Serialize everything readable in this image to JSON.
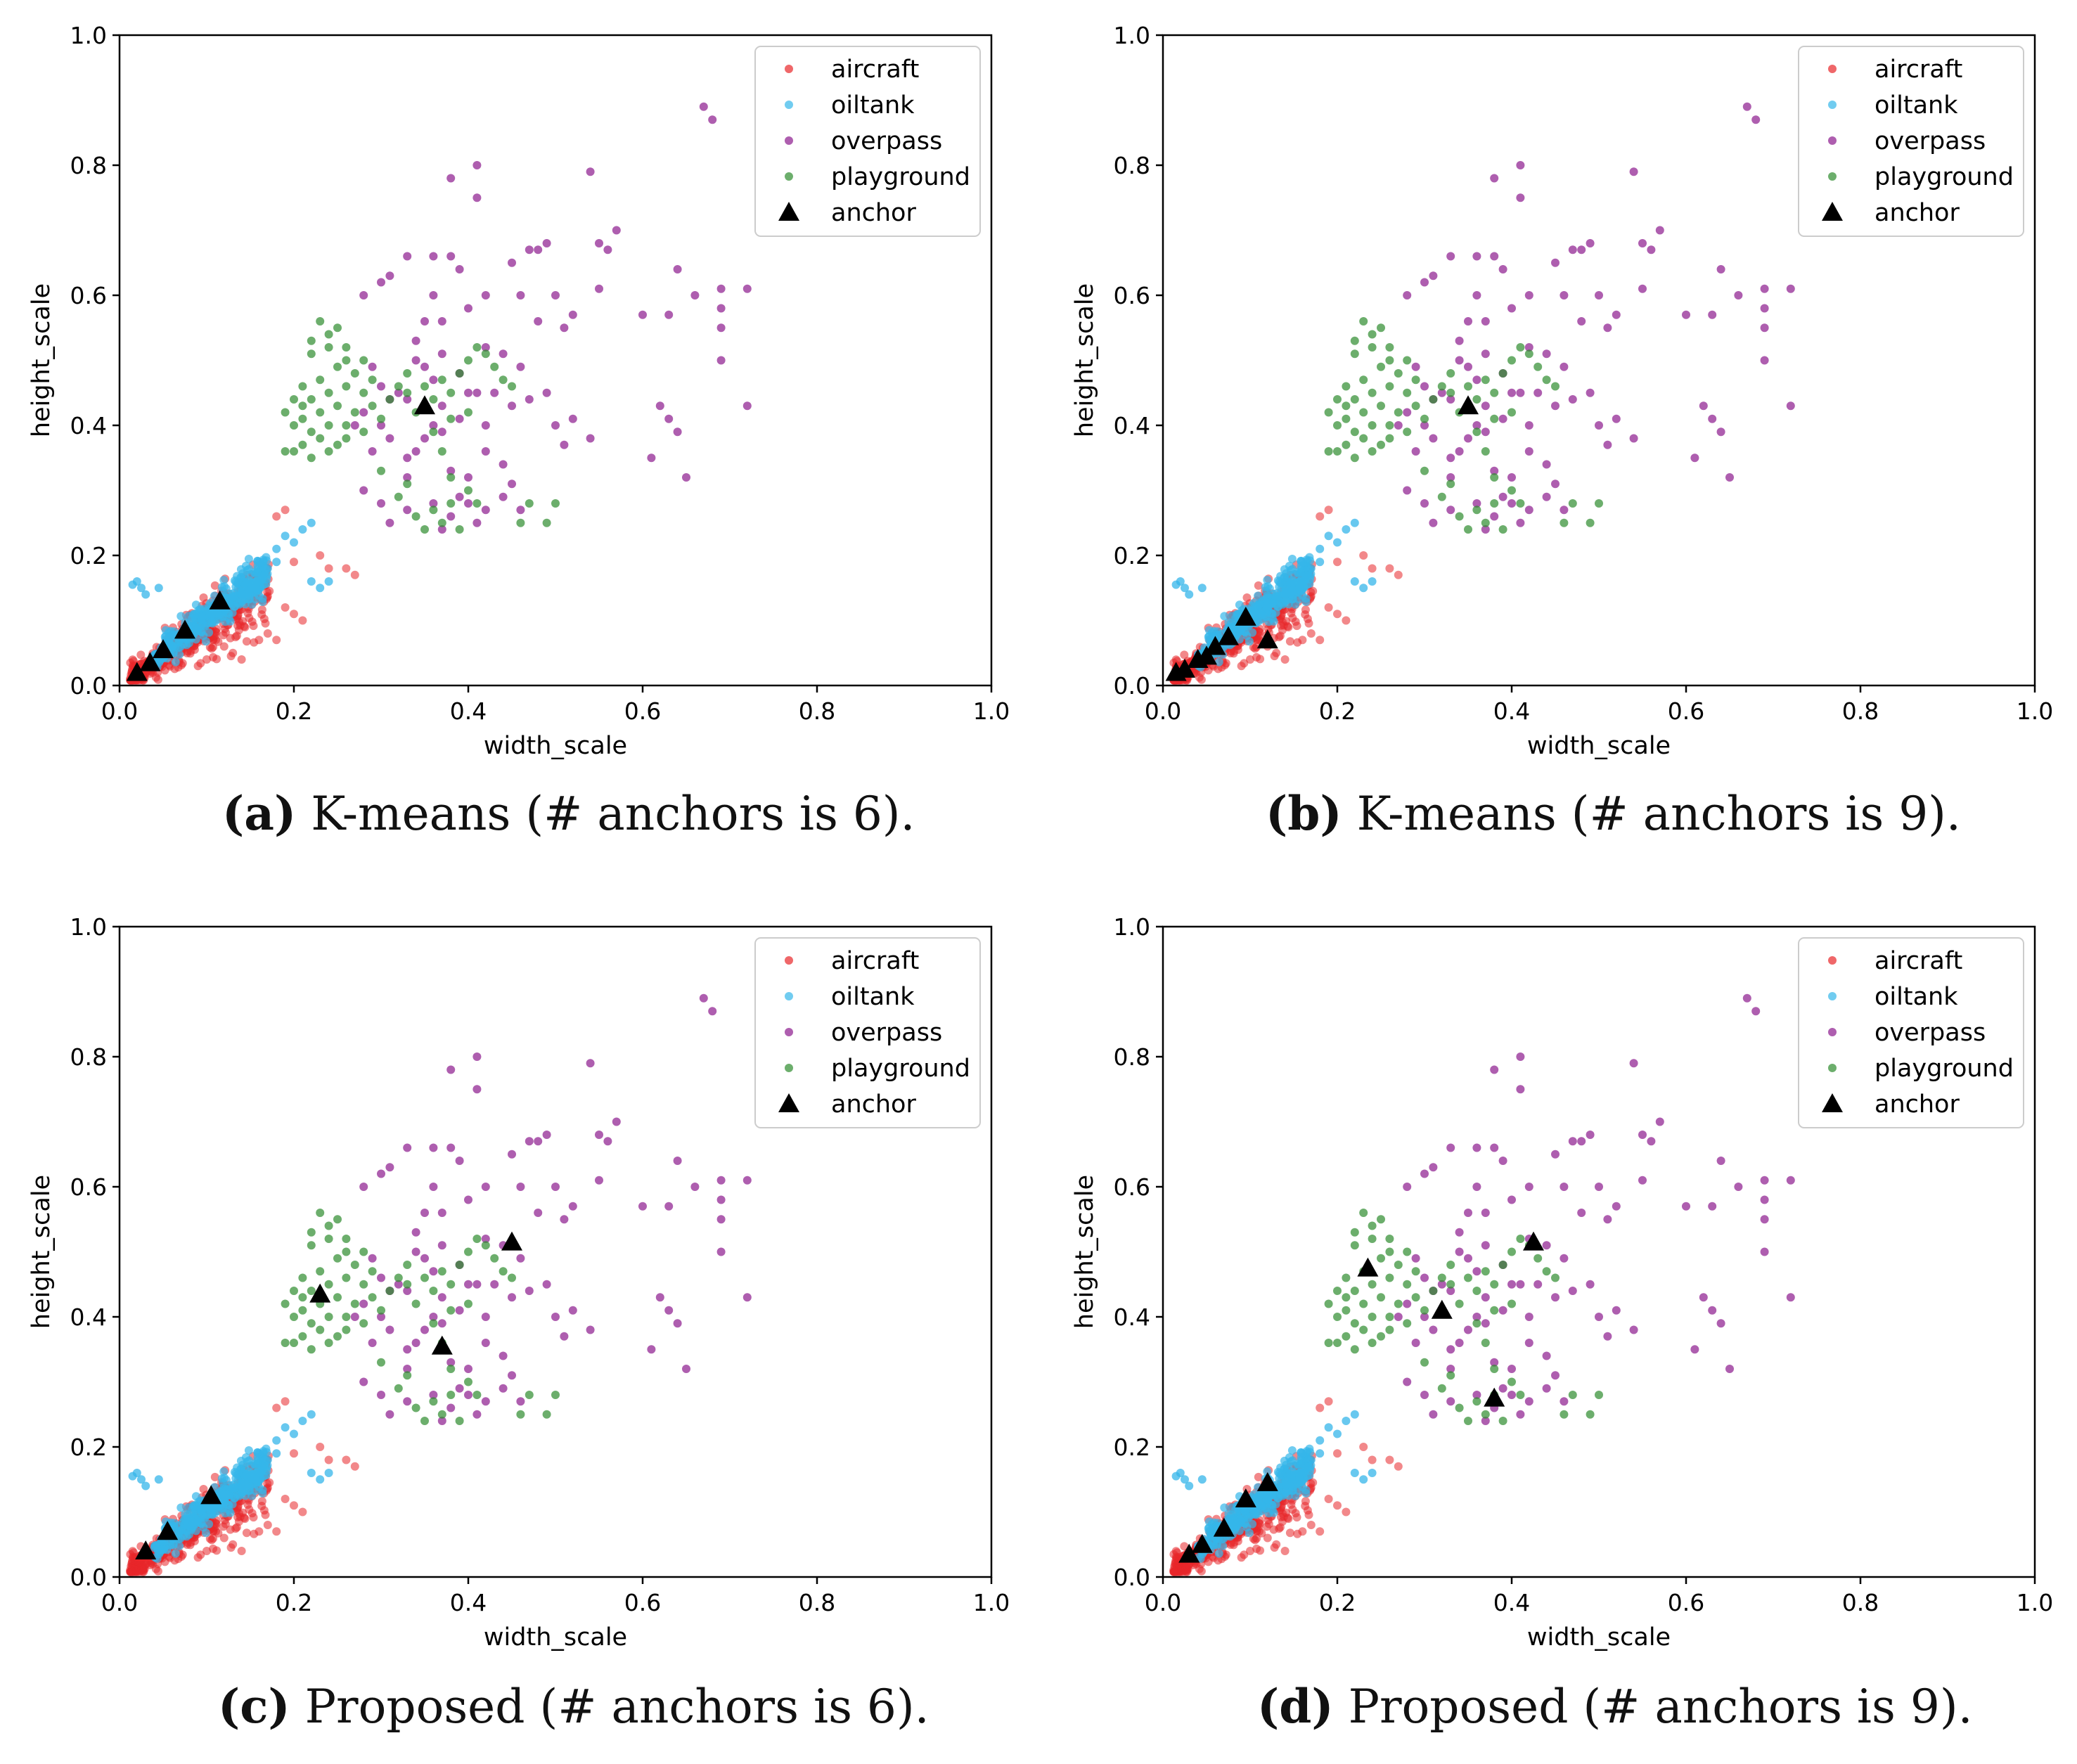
{
  "figure": {
    "captions": [
      {
        "label": "(a)",
        "text": " K-means (# anchors is 6)."
      },
      {
        "label": "(b)",
        "text": " K-means (# anchors is 9)."
      },
      {
        "label": "(c)",
        "text": " Proposed (# anchors is 6)."
      },
      {
        "label": "(d)",
        "text": " Proposed (# anchors is 9)."
      }
    ]
  },
  "colors": {
    "aircraft": "#e8272a",
    "oiltank": "#35b6ea",
    "overpass": "#8b1a8d",
    "playground": "#2e8b2e",
    "anchor": "#000000"
  },
  "chart_data": [
    {
      "type": "scatter",
      "title": "",
      "xlabel": "width_scale",
      "ylabel": "height_scale",
      "xlim": [
        0.0,
        1.0
      ],
      "ylim": [
        0.0,
        1.0
      ],
      "xticks": [
        "0.0",
        "0.2",
        "0.4",
        "0.6",
        "0.8",
        "1.0"
      ],
      "yticks": [
        "0.0",
        "0.2",
        "0.4",
        "0.6",
        "0.8",
        "1.0"
      ],
      "legend": [
        "aircraft",
        "oiltank",
        "overpass",
        "playground",
        "anchor"
      ],
      "legend_position": "top-right",
      "series_note": "aircraft, oiltank, overpass, playground point clouds shared by all panels",
      "anchors": [
        [
          0.02,
          0.02
        ],
        [
          0.035,
          0.035
        ],
        [
          0.05,
          0.055
        ],
        [
          0.075,
          0.085
        ],
        [
          0.115,
          0.13
        ],
        [
          0.35,
          0.43
        ]
      ]
    },
    {
      "type": "scatter",
      "title": "",
      "xlabel": "width_scale",
      "ylabel": "height_scale",
      "xlim": [
        0.0,
        1.0
      ],
      "ylim": [
        0.0,
        1.0
      ],
      "xticks": [
        "0.0",
        "0.2",
        "0.4",
        "0.6",
        "0.8",
        "1.0"
      ],
      "yticks": [
        "0.0",
        "0.2",
        "0.4",
        "0.6",
        "0.8",
        "1.0"
      ],
      "legend": [
        "aircraft",
        "oiltank",
        "overpass",
        "playground",
        "anchor"
      ],
      "legend_position": "top-right",
      "anchors": [
        [
          0.015,
          0.02
        ],
        [
          0.025,
          0.025
        ],
        [
          0.04,
          0.04
        ],
        [
          0.05,
          0.045
        ],
        [
          0.06,
          0.06
        ],
        [
          0.075,
          0.075
        ],
        [
          0.095,
          0.105
        ],
        [
          0.12,
          0.07
        ],
        [
          0.35,
          0.43
        ]
      ]
    },
    {
      "type": "scatter",
      "title": "",
      "xlabel": "width_scale",
      "ylabel": "height_scale",
      "xlim": [
        0.0,
        1.0
      ],
      "ylim": [
        0.0,
        1.0
      ],
      "xticks": [
        "0.0",
        "0.2",
        "0.4",
        "0.6",
        "0.8",
        "1.0"
      ],
      "yticks": [
        "0.0",
        "0.2",
        "0.4",
        "0.6",
        "0.8",
        "1.0"
      ],
      "legend": [
        "aircraft",
        "oiltank",
        "overpass",
        "playground",
        "anchor"
      ],
      "legend_position": "top-right",
      "anchors": [
        [
          0.03,
          0.04
        ],
        [
          0.055,
          0.07
        ],
        [
          0.105,
          0.125
        ],
        [
          0.23,
          0.435
        ],
        [
          0.37,
          0.355
        ],
        [
          0.45,
          0.515
        ]
      ]
    },
    {
      "type": "scatter",
      "title": "",
      "xlabel": "width_scale",
      "ylabel": "height_scale",
      "xlim": [
        0.0,
        1.0
      ],
      "ylim": [
        0.0,
        1.0
      ],
      "xticks": [
        "0.0",
        "0.2",
        "0.4",
        "0.6",
        "0.8",
        "1.0"
      ],
      "yticks": [
        "0.0",
        "0.2",
        "0.4",
        "0.6",
        "0.8",
        "1.0"
      ],
      "legend": [
        "aircraft",
        "oiltank",
        "overpass",
        "playground",
        "anchor"
      ],
      "legend_position": "top-right",
      "anchors": [
        [
          0.03,
          0.035
        ],
        [
          0.045,
          0.05
        ],
        [
          0.07,
          0.075
        ],
        [
          0.095,
          0.12
        ],
        [
          0.12,
          0.145
        ],
        [
          0.235,
          0.475
        ],
        [
          0.32,
          0.41
        ],
        [
          0.38,
          0.275
        ],
        [
          0.425,
          0.515
        ]
      ]
    }
  ],
  "sample_points": {
    "overpass": [
      [
        0.67,
        0.89
      ],
      [
        0.68,
        0.87
      ],
      [
        0.41,
        0.8
      ],
      [
        0.38,
        0.78
      ],
      [
        0.54,
        0.79
      ],
      [
        0.41,
        0.75
      ],
      [
        0.57,
        0.7
      ],
      [
        0.55,
        0.68
      ],
      [
        0.56,
        0.67
      ],
      [
        0.49,
        0.68
      ],
      [
        0.48,
        0.67
      ],
      [
        0.47,
        0.67
      ],
      [
        0.45,
        0.65
      ],
      [
        0.33,
        0.66
      ],
      [
        0.36,
        0.66
      ],
      [
        0.38,
        0.66
      ],
      [
        0.39,
        0.64
      ],
      [
        0.31,
        0.63
      ],
      [
        0.3,
        0.62
      ],
      [
        0.28,
        0.6
      ],
      [
        0.36,
        0.6
      ],
      [
        0.42,
        0.6
      ],
      [
        0.46,
        0.6
      ],
      [
        0.5,
        0.6
      ],
      [
        0.55,
        0.61
      ],
      [
        0.64,
        0.64
      ],
      [
        0.66,
        0.6
      ],
      [
        0.69,
        0.61
      ],
      [
        0.69,
        0.58
      ],
      [
        0.72,
        0.61
      ],
      [
        0.6,
        0.57
      ],
      [
        0.63,
        0.57
      ],
      [
        0.69,
        0.55
      ],
      [
        0.69,
        0.5
      ],
      [
        0.52,
        0.57
      ],
      [
        0.51,
        0.55
      ],
      [
        0.48,
        0.56
      ],
      [
        0.4,
        0.58
      ],
      [
        0.37,
        0.56
      ],
      [
        0.35,
        0.56
      ],
      [
        0.34,
        0.53
      ],
      [
        0.42,
        0.52
      ],
      [
        0.44,
        0.51
      ],
      [
        0.46,
        0.49
      ],
      [
        0.39,
        0.48
      ],
      [
        0.41,
        0.45
      ],
      [
        0.43,
        0.45
      ],
      [
        0.45,
        0.43
      ],
      [
        0.47,
        0.44
      ],
      [
        0.49,
        0.45
      ],
      [
        0.5,
        0.4
      ],
      [
        0.51,
        0.37
      ],
      [
        0.52,
        0.41
      ],
      [
        0.54,
        0.38
      ],
      [
        0.62,
        0.43
      ],
      [
        0.63,
        0.41
      ],
      [
        0.64,
        0.39
      ],
      [
        0.61,
        0.35
      ],
      [
        0.65,
        0.32
      ],
      [
        0.72,
        0.43
      ],
      [
        0.3,
        0.46
      ],
      [
        0.32,
        0.45
      ],
      [
        0.33,
        0.44
      ],
      [
        0.28,
        0.42
      ],
      [
        0.3,
        0.4
      ],
      [
        0.31,
        0.38
      ],
      [
        0.27,
        0.4
      ],
      [
        0.29,
        0.36
      ],
      [
        0.33,
        0.35
      ],
      [
        0.35,
        0.38
      ],
      [
        0.36,
        0.4
      ],
      [
        0.37,
        0.39
      ],
      [
        0.38,
        0.33
      ],
      [
        0.4,
        0.32
      ],
      [
        0.42,
        0.36
      ],
      [
        0.44,
        0.34
      ],
      [
        0.45,
        0.31
      ],
      [
        0.39,
        0.29
      ],
      [
        0.36,
        0.28
      ],
      [
        0.33,
        0.27
      ],
      [
        0.31,
        0.25
      ],
      [
        0.3,
        0.28
      ],
      [
        0.28,
        0.3
      ],
      [
        0.33,
        0.32
      ],
      [
        0.34,
        0.36
      ],
      [
        0.37,
        0.43
      ],
      [
        0.39,
        0.41
      ],
      [
        0.4,
        0.45
      ],
      [
        0.42,
        0.4
      ],
      [
        0.36,
        0.47
      ],
      [
        0.35,
        0.49
      ],
      [
        0.37,
        0.51
      ],
      [
        0.34,
        0.5
      ],
      [
        0.31,
        0.44
      ],
      [
        0.29,
        0.49
      ],
      [
        0.4,
        0.28
      ],
      [
        0.42,
        0.27
      ],
      [
        0.41,
        0.25
      ],
      [
        0.38,
        0.26
      ],
      [
        0.37,
        0.24
      ],
      [
        0.44,
        0.29
      ],
      [
        0.46,
        0.27
      ]
    ],
    "playground": [
      [
        0.23,
        0.56
      ],
      [
        0.25,
        0.55
      ],
      [
        0.24,
        0.52
      ],
      [
        0.22,
        0.51
      ],
      [
        0.26,
        0.52
      ],
      [
        0.28,
        0.5
      ],
      [
        0.27,
        0.48
      ],
      [
        0.25,
        0.49
      ],
      [
        0.23,
        0.47
      ],
      [
        0.21,
        0.46
      ],
      [
        0.22,
        0.44
      ],
      [
        0.24,
        0.45
      ],
      [
        0.26,
        0.46
      ],
      [
        0.28,
        0.45
      ],
      [
        0.29,
        0.43
      ],
      [
        0.27,
        0.42
      ],
      [
        0.25,
        0.43
      ],
      [
        0.23,
        0.42
      ],
      [
        0.21,
        0.41
      ],
      [
        0.2,
        0.4
      ],
      [
        0.22,
        0.39
      ],
      [
        0.24,
        0.4
      ],
      [
        0.26,
        0.4
      ],
      [
        0.28,
        0.39
      ],
      [
        0.25,
        0.37
      ],
      [
        0.23,
        0.38
      ],
      [
        0.21,
        0.37
      ],
      [
        0.19,
        0.36
      ],
      [
        0.22,
        0.35
      ],
      [
        0.2,
        0.36
      ],
      [
        0.24,
        0.36
      ],
      [
        0.26,
        0.38
      ],
      [
        0.3,
        0.41
      ],
      [
        0.31,
        0.44
      ],
      [
        0.32,
        0.46
      ],
      [
        0.33,
        0.45
      ],
      [
        0.34,
        0.42
      ],
      [
        0.36,
        0.44
      ],
      [
        0.37,
        0.47
      ],
      [
        0.38,
        0.45
      ],
      [
        0.35,
        0.46
      ],
      [
        0.39,
        0.48
      ],
      [
        0.4,
        0.5
      ],
      [
        0.41,
        0.52
      ],
      [
        0.42,
        0.51
      ],
      [
        0.43,
        0.49
      ],
      [
        0.44,
        0.47
      ],
      [
        0.45,
        0.46
      ],
      [
        0.33,
        0.48
      ],
      [
        0.38,
        0.41
      ],
      [
        0.4,
        0.42
      ],
      [
        0.36,
        0.39
      ],
      [
        0.37,
        0.36
      ],
      [
        0.38,
        0.32
      ],
      [
        0.4,
        0.3
      ],
      [
        0.36,
        0.27
      ],
      [
        0.37,
        0.25
      ],
      [
        0.39,
        0.24
      ],
      [
        0.35,
        0.24
      ],
      [
        0.34,
        0.26
      ],
      [
        0.38,
        0.28
      ],
      [
        0.41,
        0.28
      ],
      [
        0.47,
        0.28
      ],
      [
        0.46,
        0.25
      ],
      [
        0.5,
        0.28
      ],
      [
        0.49,
        0.25
      ],
      [
        0.32,
        0.29
      ],
      [
        0.33,
        0.31
      ],
      [
        0.3,
        0.33
      ],
      [
        0.21,
        0.43
      ],
      [
        0.2,
        0.44
      ],
      [
        0.19,
        0.42
      ],
      [
        0.24,
        0.54
      ],
      [
        0.22,
        0.53
      ],
      [
        0.26,
        0.5
      ],
      [
        0.29,
        0.47
      ]
    ],
    "oiltank_sparse": [
      [
        0.015,
        0.155
      ],
      [
        0.02,
        0.16
      ],
      [
        0.025,
        0.15
      ],
      [
        0.03,
        0.14
      ],
      [
        0.045,
        0.15
      ],
      [
        0.22,
        0.25
      ],
      [
        0.21,
        0.24
      ],
      [
        0.19,
        0.23
      ],
      [
        0.2,
        0.22
      ],
      [
        0.18,
        0.21
      ],
      [
        0.22,
        0.16
      ],
      [
        0.23,
        0.15
      ],
      [
        0.24,
        0.16
      ],
      [
        0.17,
        0.18
      ],
      [
        0.16,
        0.19
      ],
      [
        0.18,
        0.19
      ]
    ],
    "aircraft_sparse": [
      [
        0.19,
        0.27
      ],
      [
        0.18,
        0.26
      ],
      [
        0.23,
        0.2
      ],
      [
        0.24,
        0.18
      ],
      [
        0.26,
        0.18
      ],
      [
        0.27,
        0.17
      ],
      [
        0.2,
        0.19
      ],
      [
        0.17,
        0.08
      ],
      [
        0.16,
        0.07
      ],
      [
        0.18,
        0.07
      ],
      [
        0.19,
        0.12
      ],
      [
        0.2,
        0.11
      ],
      [
        0.21,
        0.1
      ],
      [
        0.12,
        0.06
      ],
      [
        0.13,
        0.05
      ],
      [
        0.14,
        0.04
      ],
      [
        0.1,
        0.04
      ],
      [
        0.09,
        0.03
      ]
    ]
  }
}
